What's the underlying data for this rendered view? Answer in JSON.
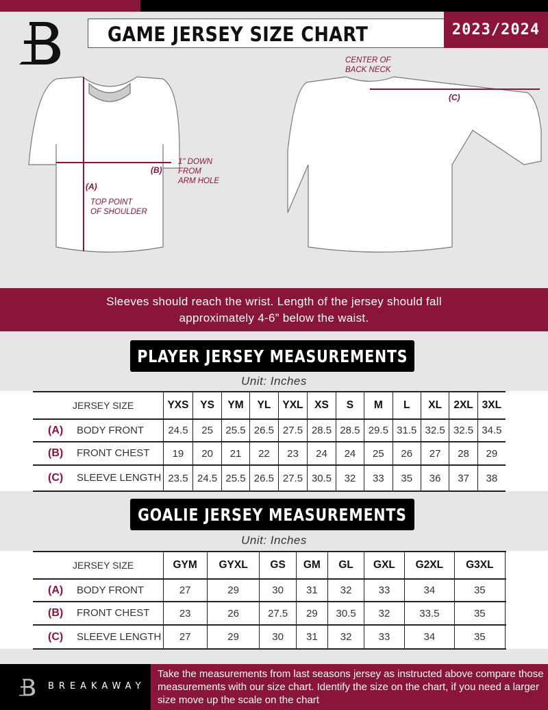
{
  "header": {
    "title": "GAME JERSEY SIZE CHART",
    "season": "2023/2024"
  },
  "diagram": {
    "label_a": "(A)",
    "note_a": "TOP POINT\nOF SHOULDER",
    "label_b": "(B)",
    "note_b": "1\" DOWN\nFROM\nARM HOLE",
    "label_c": "(C)",
    "note_c": "CENTER OF\nBACK NECK"
  },
  "banner": {
    "text": "Sleeves should reach the wrist. Length of the jersey should fall approximately 4-6” below the waist."
  },
  "colors": {
    "accent": "#8a1538",
    "dark": "#000000",
    "background": "#e6e6e8"
  },
  "player": {
    "title": "PLAYER JERSEY MEASUREMENTS",
    "unit": "Unit: Inches",
    "size_label": "JERSEY SIZE",
    "sizes": [
      "YXS",
      "YS",
      "YM",
      "YL",
      "YXL",
      "XS",
      "S",
      "M",
      "L",
      "XL",
      "2XL",
      "3XL"
    ],
    "rows": [
      {
        "code": "(A)",
        "name": "BODY FRONT",
        "values": [
          "24.5",
          "25",
          "25.5",
          "26.5",
          "27.5",
          "28.5",
          "28.5",
          "29.5",
          "31.5",
          "32.5",
          "32.5",
          "34.5"
        ]
      },
      {
        "code": "(B)",
        "name": "FRONT CHEST",
        "values": [
          "19",
          "20",
          "21",
          "22",
          "23",
          "24",
          "24",
          "25",
          "26",
          "27",
          "28",
          "29"
        ]
      },
      {
        "code": "(C)",
        "name": "SLEEVE LENGTH",
        "values": [
          "23.5",
          "24.5",
          "25.5",
          "26.5",
          "27.5",
          "30.5",
          "32",
          "33",
          "35",
          "36",
          "37",
          "38"
        ]
      }
    ]
  },
  "goalie": {
    "title": "GOALIE JERSEY MEASUREMENTS",
    "unit": "Unit: Inches",
    "size_label": "JERSEY SIZE",
    "sizes": [
      "GYM",
      "GYXL",
      "GS",
      "GM",
      "GL",
      "GXL",
      "G2XL",
      "G3XL",
      ""
    ],
    "rows": [
      {
        "code": "(A)",
        "name": "BODY FRONT",
        "values": [
          "27",
          "29",
          "30",
          "31",
          "32",
          "33",
          "34",
          "35",
          ""
        ]
      },
      {
        "code": "(B)",
        "name": "FRONT CHEST",
        "values": [
          "23",
          "26",
          "27.5",
          "29",
          "30.5",
          "32",
          "33.5",
          "35",
          ""
        ]
      },
      {
        "code": "(C)",
        "name": "SLEEVE LENGTH",
        "values": [
          "27",
          "29",
          "30",
          "31",
          "32",
          "33",
          "34",
          "35",
          ""
        ]
      }
    ]
  },
  "footer": {
    "brand": "BREAKAWAY",
    "text": "Take the measurements from last seasons jersey as instructed above compare those measurements  with our size chart. Identify the size on the chart, if you need a larger size move up the scale on the chart"
  }
}
